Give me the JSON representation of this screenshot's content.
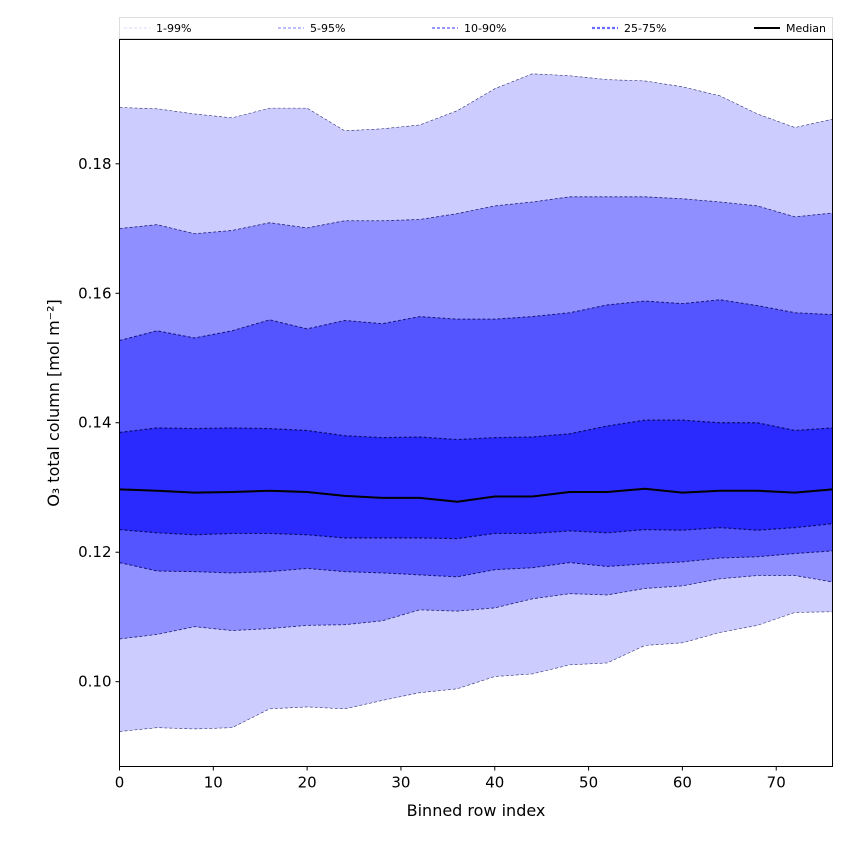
{
  "chart_data": {
    "type": "area",
    "title": "",
    "xlabel": "Binned row index",
    "ylabel": "O₃ total column [mol m⁻²]",
    "xlim": [
      0,
      76
    ],
    "ylim": [
      0.0869,
      0.1992
    ],
    "xticks": [
      0,
      10,
      20,
      30,
      40,
      50,
      60,
      70
    ],
    "xtick_labels": [
      "0",
      "10",
      "20",
      "30",
      "40",
      "50",
      "60",
      "70"
    ],
    "yticks": [
      0.1,
      0.12,
      0.14,
      0.16,
      0.18
    ],
    "ytick_labels": [
      "0.10",
      "0.12",
      "0.14",
      "0.16",
      "0.18"
    ],
    "grid": false,
    "legend_position": "top",
    "x": [
      0,
      4,
      8,
      12,
      16,
      20,
      24,
      28,
      32,
      36,
      40,
      44,
      48,
      52,
      56,
      60,
      64,
      68,
      72,
      76
    ],
    "series": [
      {
        "name": "p1",
        "values": [
          0.0923,
          0.0929,
          0.0927,
          0.0929,
          0.0958,
          0.0961,
          0.0958,
          0.0971,
          0.0983,
          0.0989,
          0.1008,
          0.1012,
          0.1026,
          0.1029,
          0.1056,
          0.106,
          0.1076,
          0.1087,
          0.1107,
          0.1108
        ]
      },
      {
        "name": "p5",
        "values": [
          0.1066,
          0.1073,
          0.1085,
          0.1079,
          0.1082,
          0.1087,
          0.1088,
          0.1094,
          0.1111,
          0.1109,
          0.1114,
          0.1128,
          0.1136,
          0.1134,
          0.1144,
          0.1148,
          0.1159,
          0.1164,
          0.1164,
          0.1154
        ]
      },
      {
        "name": "p10",
        "values": [
          0.1184,
          0.1171,
          0.117,
          0.1168,
          0.117,
          0.1175,
          0.117,
          0.1168,
          0.1165,
          0.1162,
          0.1173,
          0.1176,
          0.1184,
          0.1178,
          0.1182,
          0.1185,
          0.1191,
          0.1193,
          0.1198,
          0.1202
        ]
      },
      {
        "name": "p25",
        "values": [
          0.1235,
          0.123,
          0.1227,
          0.1229,
          0.1229,
          0.1227,
          0.1222,
          0.1222,
          0.1222,
          0.1221,
          0.1229,
          0.1229,
          0.1233,
          0.123,
          0.1235,
          0.1234,
          0.1238,
          0.1234,
          0.1238,
          0.1244
        ]
      },
      {
        "name": "Median",
        "values": [
          0.1297,
          0.1295,
          0.1292,
          0.1293,
          0.1295,
          0.1293,
          0.1287,
          0.1284,
          0.1284,
          0.1278,
          0.1286,
          0.1286,
          0.1293,
          0.1293,
          0.1298,
          0.1292,
          0.1295,
          0.1295,
          0.1292,
          0.1297
        ]
      },
      {
        "name": "p75",
        "values": [
          0.1385,
          0.1392,
          0.1391,
          0.1392,
          0.1391,
          0.1388,
          0.138,
          0.1377,
          0.1378,
          0.1374,
          0.1377,
          0.1378,
          0.1383,
          0.1395,
          0.1404,
          0.1404,
          0.14,
          0.14,
          0.1388,
          0.1392
        ]
      },
      {
        "name": "p90",
        "values": [
          0.1527,
          0.1542,
          0.1531,
          0.1542,
          0.1559,
          0.1545,
          0.1558,
          0.1553,
          0.1564,
          0.156,
          0.156,
          0.1564,
          0.157,
          0.1582,
          0.1588,
          0.1584,
          0.159,
          0.1581,
          0.157,
          0.1567
        ]
      },
      {
        "name": "p95",
        "values": [
          0.17,
          0.1706,
          0.1692,
          0.1697,
          0.1709,
          0.1701,
          0.1712,
          0.1712,
          0.1714,
          0.1723,
          0.1735,
          0.1741,
          0.1749,
          0.1749,
          0.1749,
          0.1746,
          0.1741,
          0.1735,
          0.1718,
          0.1724
        ]
      },
      {
        "name": "p99",
        "values": [
          0.1887,
          0.1885,
          0.1877,
          0.1871,
          0.1886,
          0.1886,
          0.1851,
          0.1854,
          0.186,
          0.1882,
          0.1916,
          0.1939,
          0.1936,
          0.193,
          0.1928,
          0.1919,
          0.1905,
          0.1877,
          0.1856,
          0.1869
        ]
      }
    ],
    "bands": [
      {
        "name": "1-99%",
        "lower": "p1",
        "upper": "p99",
        "color": "#ccccff",
        "line_color": "#d8d8ff"
      },
      {
        "name": "5-95%",
        "lower": "p5",
        "upper": "p95",
        "color": "#8f8fff",
        "line_color": "#a8a8ff"
      },
      {
        "name": "10-90%",
        "lower": "p10",
        "upper": "p90",
        "color": "#5555ff",
        "line_color": "#8a8aff"
      },
      {
        "name": "25-75%",
        "lower": "p25",
        "upper": "p75",
        "color": "#2a2aff",
        "line_color": "#6a6aff"
      }
    ],
    "median_color": "#000000",
    "legend": [
      "1-99%",
      "5-95%",
      "10-90%",
      "25-75%",
      "Median"
    ]
  }
}
